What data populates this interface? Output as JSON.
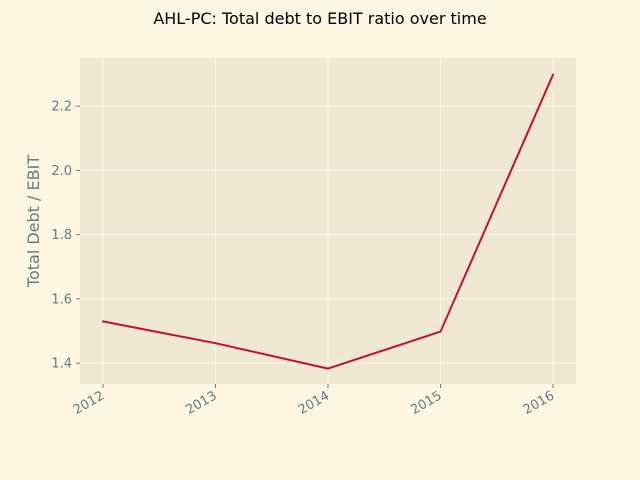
{
  "colors": {
    "figure_bg": "#fdf6e3",
    "axes_bg": "#eee8d5",
    "grid": "#fdf6e3",
    "text": "#657b83",
    "line": "#c8102e"
  },
  "chart_data": {
    "type": "line",
    "title": "AHL-PC: Total debt to EBIT ratio over time",
    "xlabel": "",
    "ylabel": "Total Debt / EBIT",
    "x": [
      "2012",
      "2013",
      "2014",
      "2015",
      "2016"
    ],
    "series": [
      {
        "values": [
          1.53,
          1.462,
          1.383,
          1.498,
          2.298
        ]
      }
    ],
    "ylim": [
      1.335,
      2.35
    ],
    "yticks": [
      1.4,
      1.6,
      1.8,
      2.0,
      2.2
    ],
    "ytick_labels": [
      "1.4",
      "1.6",
      "1.8",
      "2.0",
      "2.2"
    ],
    "grid": true,
    "legend": "none"
  }
}
